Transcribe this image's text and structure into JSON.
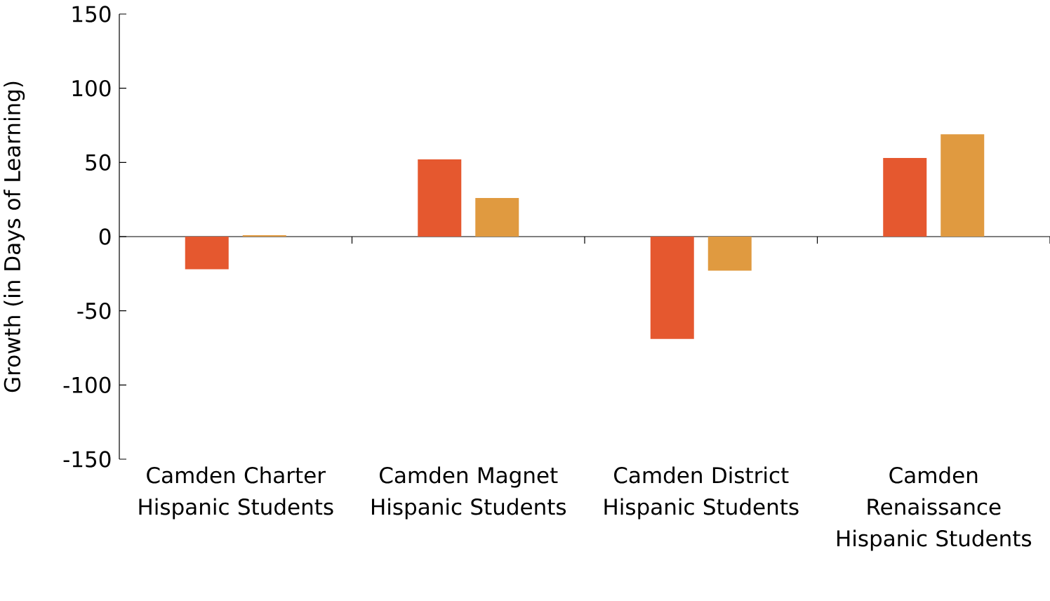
{
  "chart_data": {
    "type": "bar",
    "ylabel": "Growth (in Days of Learning)",
    "categories": [
      "Camden Charter Hispanic Students",
      "Camden Magnet Hispanic Students",
      "Camden District Hispanic Students",
      "Camden Renaissance Hispanic Students"
    ],
    "series": [
      {
        "color": "#e5582f",
        "values": [
          -22,
          52,
          -69,
          53
        ]
      },
      {
        "color": "#e09a40",
        "values": [
          1,
          26,
          -23,
          69
        ]
      }
    ],
    "ylim": [
      -150,
      150
    ],
    "yticks": [
      -150,
      -100,
      -50,
      0,
      50,
      100,
      150
    ]
  }
}
